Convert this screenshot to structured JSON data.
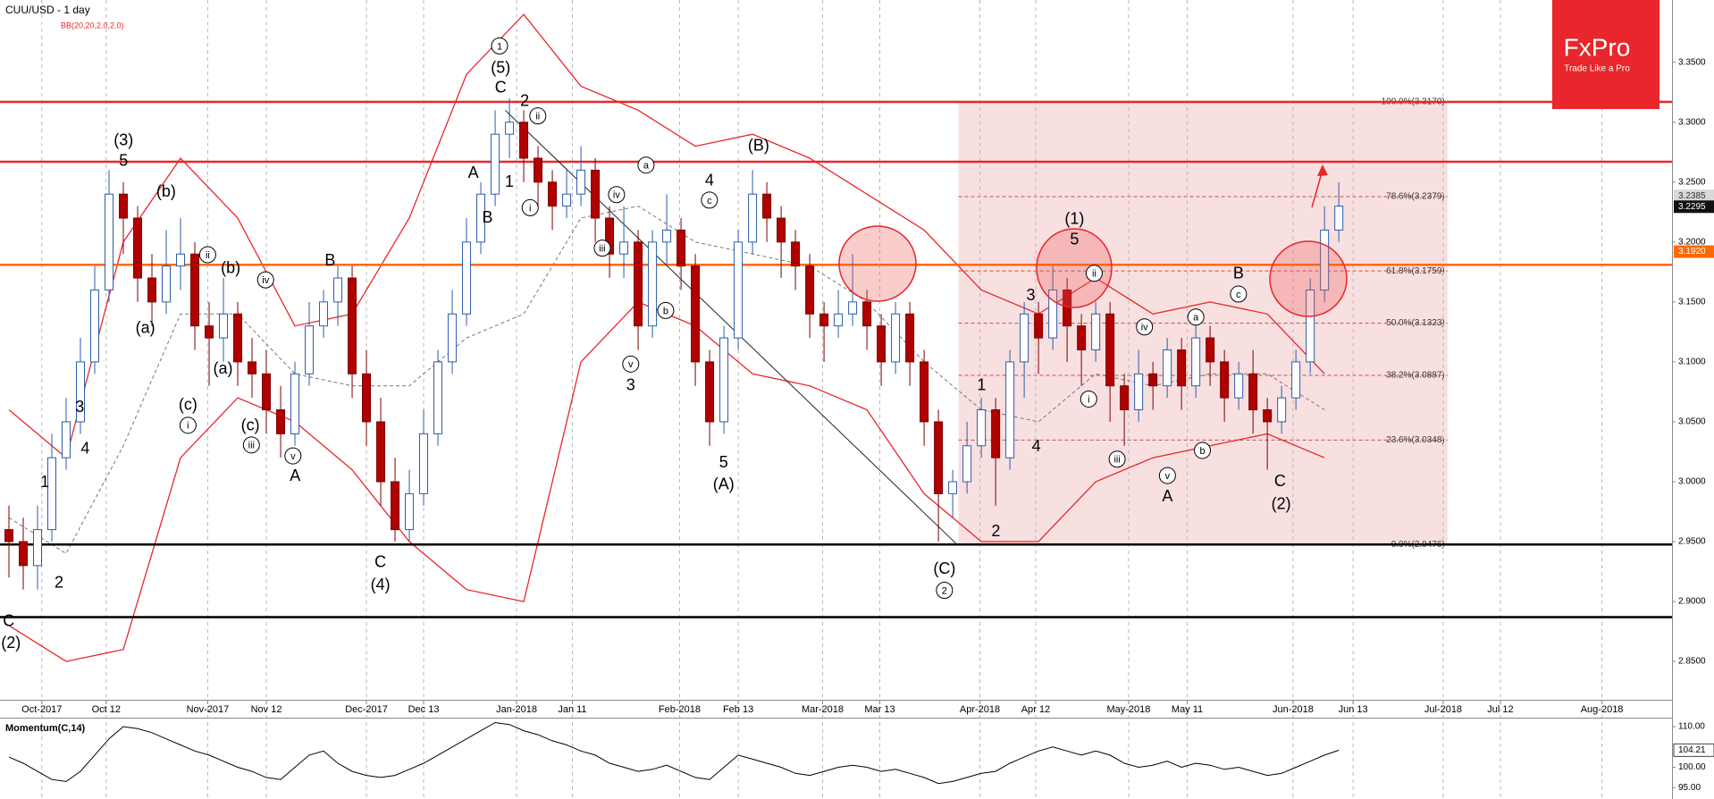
{
  "chart_data": {
    "type": "candlestick",
    "title": "CUU/USD - 1 day",
    "subtitle": "BB(20,20,2.0,2.0)",
    "logo": {
      "name": "FxPro",
      "tagline": "Trade Like a Pro",
      "color": "#e8262b"
    },
    "up_color": "#ffffff",
    "up_edge": "#2a5caa",
    "down_color": "#b00000",
    "down_edge": "#7a0000",
    "x": [
      0,
      1,
      2,
      3,
      4,
      5,
      6,
      7,
      8,
      9,
      10,
      11,
      12,
      13,
      14,
      15,
      16,
      17,
      18,
      19,
      20,
      21,
      22,
      23,
      24,
      25,
      26,
      27,
      28,
      29,
      30,
      31,
      32,
      33,
      34,
      35,
      36,
      37,
      38,
      39,
      40,
      41,
      42,
      43,
      44,
      45,
      46,
      47,
      48,
      49,
      50,
      51,
      52,
      53,
      54,
      55,
      56,
      57,
      58,
      59,
      60,
      61,
      62,
      63,
      64,
      65,
      66,
      67,
      68,
      69,
      70,
      71,
      72,
      73,
      74,
      75,
      76,
      77,
      78,
      79,
      80,
      81,
      82,
      83,
      84,
      85,
      86,
      87,
      88,
      89,
      90,
      91,
      92,
      93
    ],
    "open": [
      2.96,
      2.95,
      2.93,
      2.96,
      3.02,
      3.05,
      3.1,
      3.16,
      3.24,
      3.22,
      3.17,
      3.15,
      3.18,
      3.19,
      3.13,
      3.12,
      3.14,
      3.1,
      3.09,
      3.06,
      3.04,
      3.09,
      3.13,
      3.15,
      3.17,
      3.09,
      3.05,
      3.0,
      2.96,
      2.99,
      3.04,
      3.1,
      3.14,
      3.2,
      3.24,
      3.29,
      3.3,
      3.27,
      3.25,
      3.23,
      3.24,
      3.26,
      3.22,
      3.19,
      3.2,
      3.13,
      3.2,
      3.21,
      3.18,
      3.1,
      3.05,
      3.12,
      3.2,
      3.24,
      3.22,
      3.2,
      3.18,
      3.14,
      3.13,
      3.14,
      3.15,
      3.13,
      3.1,
      3.14,
      3.1,
      3.05,
      2.99,
      3.0,
      3.03,
      3.06,
      3.02,
      3.1,
      3.14,
      3.12,
      3.16,
      3.13,
      3.11,
      3.14,
      3.08,
      3.06,
      3.09,
      3.08,
      3.11,
      3.08,
      3.12,
      3.1,
      3.07,
      3.09,
      3.06,
      3.05,
      3.07,
      3.1,
      3.16,
      3.21
    ],
    "high": [
      2.98,
      2.97,
      2.98,
      3.04,
      3.07,
      3.12,
      3.18,
      3.26,
      3.25,
      3.23,
      3.19,
      3.21,
      3.22,
      3.2,
      3.15,
      3.17,
      3.15,
      3.12,
      3.11,
      3.08,
      3.1,
      3.15,
      3.16,
      3.18,
      3.18,
      3.11,
      3.07,
      3.02,
      3.01,
      3.06,
      3.11,
      3.16,
      3.22,
      3.25,
      3.31,
      3.32,
      3.31,
      3.28,
      3.26,
      3.26,
      3.28,
      3.27,
      3.23,
      3.23,
      3.21,
      3.21,
      3.24,
      3.22,
      3.19,
      3.11,
      3.13,
      3.21,
      3.26,
      3.25,
      3.23,
      3.21,
      3.19,
      3.15,
      3.16,
      3.19,
      3.16,
      3.14,
      3.15,
      3.15,
      3.11,
      3.06,
      3.01,
      3.05,
      3.07,
      3.07,
      3.11,
      3.15,
      3.15,
      3.18,
      3.17,
      3.14,
      3.15,
      3.15,
      3.09,
      3.11,
      3.1,
      3.12,
      3.12,
      3.14,
      3.13,
      3.11,
      3.1,
      3.11,
      3.07,
      3.08,
      3.11,
      3.17,
      3.23,
      3.25
    ],
    "low": [
      2.92,
      2.91,
      2.91,
      2.95,
      3.01,
      3.04,
      3.09,
      3.15,
      3.19,
      3.15,
      3.13,
      3.14,
      3.16,
      3.11,
      3.08,
      3.1,
      3.08,
      3.07,
      3.04,
      3.02,
      3.03,
      3.08,
      3.12,
      3.13,
      3.07,
      3.03,
      2.98,
      2.95,
      2.95,
      2.98,
      3.03,
      3.09,
      3.13,
      3.19,
      3.23,
      3.27,
      3.25,
      3.23,
      3.21,
      3.22,
      3.23,
      3.2,
      3.17,
      3.17,
      3.11,
      3.12,
      3.18,
      3.16,
      3.08,
      3.03,
      3.04,
      3.11,
      3.19,
      3.2,
      3.17,
      3.16,
      3.12,
      3.1,
      3.12,
      3.13,
      3.11,
      3.08,
      3.09,
      3.08,
      3.03,
      2.95,
      2.97,
      2.99,
      3.02,
      2.98,
      3.01,
      3.07,
      3.09,
      3.11,
      3.1,
      3.08,
      3.1,
      3.05,
      3.03,
      3.05,
      3.06,
      3.07,
      3.06,
      3.07,
      3.08,
      3.05,
      3.06,
      3.04,
      3.01,
      3.04,
      3.06,
      3.09,
      3.15,
      3.2
    ],
    "close": [
      2.95,
      2.93,
      2.96,
      3.02,
      3.05,
      3.1,
      3.16,
      3.24,
      3.22,
      3.17,
      3.15,
      3.18,
      3.19,
      3.13,
      3.12,
      3.14,
      3.1,
      3.09,
      3.06,
      3.04,
      3.09,
      3.13,
      3.15,
      3.17,
      3.09,
      3.05,
      3.0,
      2.96,
      2.99,
      3.04,
      3.1,
      3.14,
      3.2,
      3.24,
      3.29,
      3.3,
      3.27,
      3.25,
      3.23,
      3.24,
      3.26,
      3.22,
      3.19,
      3.2,
      3.13,
      3.2,
      3.21,
      3.18,
      3.1,
      3.05,
      3.12,
      3.2,
      3.24,
      3.22,
      3.2,
      3.18,
      3.14,
      3.13,
      3.14,
      3.15,
      3.13,
      3.1,
      3.14,
      3.1,
      3.05,
      2.99,
      3.0,
      3.03,
      3.06,
      3.02,
      3.1,
      3.14,
      3.12,
      3.16,
      3.13,
      3.11,
      3.14,
      3.08,
      3.06,
      3.09,
      3.08,
      3.11,
      3.08,
      3.12,
      3.1,
      3.07,
      3.09,
      3.06,
      3.05,
      3.07,
      3.1,
      3.16,
      3.21,
      3.23
    ],
    "xlim": [
      -0.625,
      116.3
    ],
    "xticks": [
      {
        "value": 2.3,
        "label": "Oct-2017"
      },
      {
        "value": 6.8,
        "label": "Oct 12"
      },
      {
        "value": 13.9,
        "label": "Nov-2017"
      },
      {
        "value": 18.0,
        "label": "Nov 12"
      },
      {
        "value": 25.0,
        "label": "Dec-2017"
      },
      {
        "value": 29.0,
        "label": "Dec 13"
      },
      {
        "value": 35.5,
        "label": "Jan-2018"
      },
      {
        "value": 39.4,
        "label": "Jan 11"
      },
      {
        "value": 46.9,
        "label": "Feb-2018"
      },
      {
        "value": 51.0,
        "label": "Feb 13"
      },
      {
        "value": 56.9,
        "label": "Mar-2018"
      },
      {
        "value": 60.9,
        "label": "Mar 13"
      },
      {
        "value": 67.9,
        "label": "Apr-2018"
      },
      {
        "value": 71.8,
        "label": "Apr 12"
      },
      {
        "value": 78.3,
        "label": "May-2018"
      },
      {
        "value": 82.4,
        "label": "May 11"
      },
      {
        "value": 89.8,
        "label": "Jun-2018"
      },
      {
        "value": 94.0,
        "label": "Jun 13"
      },
      {
        "value": 100.3,
        "label": "Jul-2018"
      },
      {
        "value": 104.3,
        "label": "Jul 12"
      },
      {
        "value": 111.4,
        "label": "Aug-2018"
      }
    ],
    "ylim": [
      2.818,
      3.402
    ],
    "yticks": [
      {
        "value": 3.35,
        "label": "3.3500"
      },
      {
        "value": 3.3,
        "label": "3.3000"
      },
      {
        "value": 3.25,
        "label": "3.2500"
      },
      {
        "value": 3.2,
        "label": "3.2000"
      },
      {
        "value": 3.15,
        "label": "3.1500"
      },
      {
        "value": 3.1,
        "label": "3.1000"
      },
      {
        "value": 3.05,
        "label": "3.0500"
      },
      {
        "value": 3.0,
        "label": "3.0000"
      },
      {
        "value": 2.95,
        "label": "2.9500"
      },
      {
        "value": 2.9,
        "label": "2.9000"
      },
      {
        "value": 2.85,
        "label": "2.8500"
      }
    ],
    "price_markers": [
      {
        "value": 3.2385,
        "label": "3.2385",
        "color": "#d8d8d8",
        "text_color": "#333333"
      },
      {
        "value": 3.2295,
        "label": "3.2295",
        "color": "#111111",
        "text_color": "#ffffff"
      },
      {
        "value": 3.192,
        "label": "3.1920",
        "color": "#ff6a00",
        "text_color": "#ffffff"
      }
    ],
    "levels": [
      {
        "value": 3.317,
        "color": "#e8262b"
      },
      {
        "value": 3.267,
        "color": "#e8262b"
      },
      {
        "value": 3.181,
        "color": "#ff6a00"
      },
      {
        "value": 2.9476,
        "color": "#000000"
      },
      {
        "value": 2.887,
        "color": "#000000"
      }
    ],
    "fib": {
      "x": [
        66.4,
        100.6
      ],
      "color": "#f4cccc",
      "levels": [
        {
          "value": 3.317,
          "label": "100.0%(3.3170)"
        },
        {
          "value": 3.2379,
          "label": "78.6%(3.2379)"
        },
        {
          "value": 3.1759,
          "label": "61.8%(3.1759)"
        },
        {
          "value": 3.1323,
          "label": "50.0%(3.1323)"
        },
        {
          "value": 3.0887,
          "label": "38.2%(3.0887)"
        },
        {
          "value": 3.0348,
          "label": "23.6%(3.0348)"
        },
        {
          "value": 2.9476,
          "label": "0.0%(2.9476)"
        }
      ]
    },
    "trendline": {
      "x": [
        34.7,
        66.3
      ],
      "y": [
        3.31,
        2.9476
      ]
    },
    "bands": {
      "color": "#e8262b",
      "x": [
        0,
        4,
        8,
        12,
        16,
        20,
        24,
        28,
        32,
        36,
        40,
        44,
        48,
        52,
        56,
        60,
        64,
        68,
        72,
        76,
        80,
        84,
        88,
        92
      ],
      "upper": [
        3.06,
        3.02,
        3.2,
        3.27,
        3.22,
        3.13,
        3.14,
        3.22,
        3.34,
        3.39,
        3.33,
        3.31,
        3.28,
        3.29,
        3.27,
        3.24,
        3.21,
        3.16,
        3.14,
        3.17,
        3.14,
        3.15,
        3.14,
        3.09
      ],
      "middle": [
        2.97,
        2.94,
        3.03,
        3.14,
        3.14,
        3.09,
        3.08,
        3.08,
        3.12,
        3.14,
        3.22,
        3.23,
        3.2,
        3.19,
        3.18,
        3.15,
        3.1,
        3.06,
        3.05,
        3.09,
        3.08,
        3.09,
        3.09,
        3.06
      ],
      "lower": [
        2.88,
        2.85,
        2.86,
        3.02,
        3.07,
        3.05,
        3.01,
        2.95,
        2.91,
        2.9,
        3.1,
        3.15,
        3.13,
        3.09,
        3.08,
        3.06,
        2.99,
        2.95,
        2.95,
        3.0,
        3.02,
        3.03,
        3.04,
        3.02
      ]
    },
    "annotations": [
      "(3)",
      "5",
      "(b)",
      "(a)",
      "3",
      "4",
      "1",
      "2",
      "C",
      "(2)",
      "ii",
      "(b)",
      "(c)",
      "i",
      "(a)",
      "iv",
      "(c)",
      "iii",
      "v",
      "A",
      "B",
      "C",
      "(4)",
      "A",
      "B",
      "1",
      "(5)",
      "C",
      "2",
      "ii",
      "1",
      "i",
      "a",
      "iv",
      "4",
      "c",
      "iii",
      "b",
      "v",
      "3",
      "5",
      "(A)",
      "(B)",
      "(C)",
      "2",
      "1",
      "2",
      "3",
      "4",
      "(1)",
      "5",
      "ii",
      "i",
      "iv",
      "iii",
      "a",
      "v",
      "A",
      "b",
      "B",
      "c",
      "C",
      "(2)"
    ],
    "momentum": {
      "type": "line",
      "title": "Momentum(C,14)",
      "color": "#000000",
      "values": [
        102.5,
        101,
        99,
        97,
        96.5,
        99,
        103,
        107,
        110,
        109.5,
        108.5,
        107,
        105.5,
        104,
        103,
        101.5,
        100,
        99,
        97.5,
        97,
        100,
        103,
        104,
        101,
        99,
        98,
        97.5,
        98,
        99.5,
        101,
        103,
        105,
        107,
        109,
        111,
        110.5,
        109,
        108,
        106.5,
        105.5,
        104,
        103,
        101,
        100,
        99,
        99.5,
        100.5,
        99,
        97.5,
        97,
        100,
        103,
        102,
        101,
        100,
        98.5,
        98,
        99,
        100,
        100.5,
        100,
        99,
        99.5,
        98.5,
        97.5,
        96,
        96.5,
        97.5,
        98.5,
        99,
        101,
        102.5,
        104,
        105,
        104,
        103,
        104,
        103,
        101,
        100,
        100.5,
        101.5,
        100,
        101,
        100.5,
        99.5,
        100,
        99,
        98,
        98.5,
        100,
        101.5,
        103,
        104.21
      ],
      "ylim": [
        92.2,
        112.2
      ],
      "yticks": [
        {
          "value": 110,
          "label": "110.00"
        },
        {
          "value": 100,
          "label": "100.00"
        },
        {
          "value": 95,
          "label": "95.00"
        }
      ],
      "marker": {
        "value": 104.21,
        "label": "104.21"
      }
    }
  }
}
